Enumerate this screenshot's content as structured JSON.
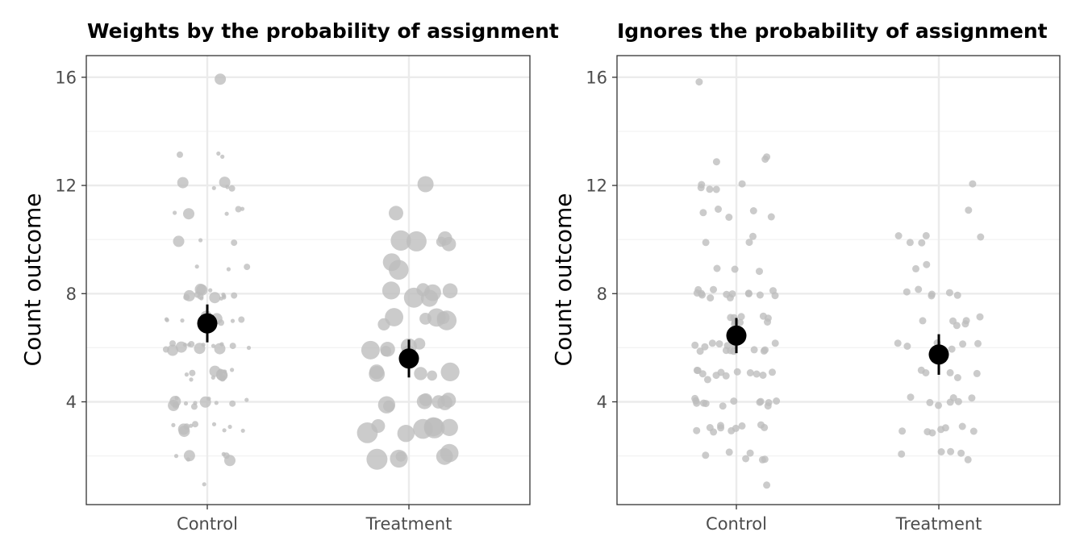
{
  "chart_data": [
    {
      "type": "scatter",
      "title": "Weights by the probability of assignment",
      "xlabel": "",
      "ylabel": "Count outcome",
      "categories": [
        "Control",
        "Treatment"
      ],
      "y_ticks": [
        4,
        8,
        12,
        16
      ],
      "ylim": [
        0.2,
        16.8
      ],
      "grid": true,
      "point_color": "#bdbdbd",
      "summary_color": "#000000",
      "points": [
        {
          "group": "Control",
          "values": [
            16,
            13,
            13,
            13,
            12,
            12,
            12,
            12,
            12,
            11,
            11,
            11,
            11,
            11,
            10,
            10,
            10,
            9,
            9,
            9,
            8,
            8,
            8,
            8,
            8,
            8,
            8,
            8,
            8,
            8,
            8,
            8,
            8,
            8,
            7,
            7,
            7,
            7,
            7,
            7,
            7,
            7,
            7,
            7,
            6,
            6,
            6,
            6,
            6,
            6,
            6,
            6,
            6,
            6,
            6,
            6,
            6,
            6,
            5,
            5,
            5,
            5,
            5,
            5,
            5,
            5,
            5,
            5,
            5,
            5,
            4,
            4,
            4,
            4,
            4,
            4,
            4,
            4,
            4,
            4,
            4,
            4,
            3,
            3,
            3,
            3,
            3,
            3,
            3,
            3,
            3,
            3,
            2,
            2,
            2,
            2,
            2,
            2,
            1
          ]
        },
        {
          "group": "Treatment",
          "values": [
            12,
            11,
            10,
            10,
            10,
            10,
            10,
            9,
            9,
            8,
            8,
            8,
            8,
            8,
            8,
            7,
            7,
            7,
            7,
            7,
            7,
            6,
            6,
            6,
            6,
            6,
            6,
            5,
            5,
            5,
            5,
            5,
            4,
            4,
            4,
            4,
            4,
            4,
            4,
            3,
            3,
            3,
            3,
            3,
            3,
            3,
            2,
            2,
            2,
            2,
            2
          ]
        }
      ],
      "summary": [
        {
          "group": "Control",
          "mean": 6.9,
          "lower": 6.2,
          "upper": 7.6
        },
        {
          "group": "Treatment",
          "mean": 5.6,
          "lower": 4.9,
          "upper": 6.3
        }
      ]
    },
    {
      "type": "scatter",
      "title": "Ignores the probability of assignment",
      "xlabel": "",
      "ylabel": "Count outcome",
      "categories": [
        "Control",
        "Treatment"
      ],
      "y_ticks": [
        4,
        8,
        12,
        16
      ],
      "ylim": [
        0.2,
        16.8
      ],
      "grid": true,
      "point_color": "#bdbdbd",
      "summary_color": "#000000",
      "points": [
        {
          "group": "Control",
          "values": [
            16,
            13,
            13,
            13,
            12,
            12,
            12,
            12,
            12,
            11,
            11,
            11,
            11,
            11,
            10,
            10,
            10,
            9,
            9,
            9,
            8,
            8,
            8,
            8,
            8,
            8,
            8,
            8,
            8,
            8,
            8,
            8,
            8,
            8,
            7,
            7,
            7,
            7,
            7,
            7,
            7,
            7,
            7,
            7,
            6,
            6,
            6,
            6,
            6,
            6,
            6,
            6,
            6,
            6,
            6,
            6,
            6,
            6,
            5,
            5,
            5,
            5,
            5,
            5,
            5,
            5,
            5,
            5,
            5,
            5,
            4,
            4,
            4,
            4,
            4,
            4,
            4,
            4,
            4,
            4,
            4,
            4,
            3,
            3,
            3,
            3,
            3,
            3,
            3,
            3,
            3,
            3,
            2,
            2,
            2,
            2,
            2,
            2,
            1
          ]
        },
        {
          "group": "Treatment",
          "values": [
            12,
            11,
            10,
            10,
            10,
            10,
            10,
            9,
            9,
            8,
            8,
            8,
            8,
            8,
            8,
            7,
            7,
            7,
            7,
            7,
            7,
            6,
            6,
            6,
            6,
            6,
            6,
            5,
            5,
            5,
            5,
            5,
            4,
            4,
            4,
            4,
            4,
            4,
            4,
            3,
            3,
            3,
            3,
            3,
            3,
            3,
            2,
            2,
            2,
            2,
            2
          ]
        }
      ],
      "summary": [
        {
          "group": "Control",
          "mean": 6.45,
          "lower": 5.8,
          "upper": 7.1
        },
        {
          "group": "Treatment",
          "mean": 5.75,
          "lower": 5.0,
          "upper": 6.5
        }
      ]
    }
  ]
}
